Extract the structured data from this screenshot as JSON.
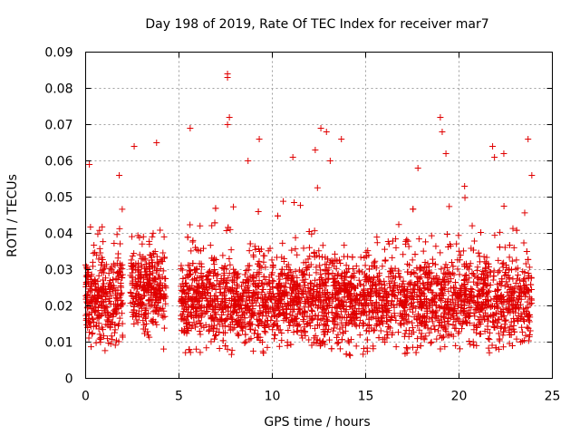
{
  "chart_data": {
    "type": "scatter",
    "title": "Day 198 of 2019, Rate Of TEC Index for receiver mar7",
    "xlabel": "GPS time / hours",
    "ylabel": "ROTI / TECUs",
    "xlim": [
      0,
      25
    ],
    "ylim": [
      0,
      0.09
    ],
    "x_ticks": [
      0,
      5,
      10,
      15,
      20,
      25
    ],
    "x_tick_labels": [
      "0",
      "5",
      "10",
      "15",
      "20",
      "25"
    ],
    "y_ticks": [
      0,
      0.01,
      0.02,
      0.03,
      0.04,
      0.05,
      0.06,
      0.07,
      0.08,
      0.09
    ],
    "y_tick_labels": [
      "0",
      "0.01",
      "0.02",
      "0.03",
      "0.04",
      "0.05",
      "0.06",
      "0.07",
      "0.08",
      "0.09"
    ],
    "grid": true,
    "marker": "plus",
    "color": "#e00000",
    "coverage_segments": [
      {
        "start": 0.0,
        "end": 2.0,
        "median": 0.022,
        "spread": 0.008
      },
      {
        "start": 2.4,
        "end": 4.3,
        "median": 0.024,
        "spread": 0.008
      },
      {
        "start": 5.1,
        "end": 23.9,
        "median": 0.021,
        "spread": 0.008
      }
    ],
    "notable_points": [
      {
        "x": 7.6,
        "y": 0.084
      },
      {
        "x": 7.6,
        "y": 0.083
      },
      {
        "x": 7.7,
        "y": 0.072
      },
      {
        "x": 7.6,
        "y": 0.07
      },
      {
        "x": 5.6,
        "y": 0.069
      },
      {
        "x": 12.6,
        "y": 0.069
      },
      {
        "x": 12.9,
        "y": 0.068
      },
      {
        "x": 19.0,
        "y": 0.072
      },
      {
        "x": 19.1,
        "y": 0.068
      },
      {
        "x": 9.3,
        "y": 0.066
      },
      {
        "x": 13.7,
        "y": 0.066
      },
      {
        "x": 23.7,
        "y": 0.066
      },
      {
        "x": 3.8,
        "y": 0.065
      },
      {
        "x": 2.6,
        "y": 0.064
      },
      {
        "x": 21.8,
        "y": 0.064
      },
      {
        "x": 22.4,
        "y": 0.062
      },
      {
        "x": 11.1,
        "y": 0.061
      },
      {
        "x": 8.7,
        "y": 0.06
      },
      {
        "x": 13.1,
        "y": 0.06
      },
      {
        "x": 0.2,
        "y": 0.059
      },
      {
        "x": 17.8,
        "y": 0.058
      },
      {
        "x": 1.8,
        "y": 0.056
      },
      {
        "x": 20.3,
        "y": 0.053
      },
      {
        "x": 23.9,
        "y": 0.056
      },
      {
        "x": 12.3,
        "y": 0.063
      },
      {
        "x": 19.3,
        "y": 0.062
      },
      {
        "x": 21.9,
        "y": 0.061
      }
    ]
  }
}
